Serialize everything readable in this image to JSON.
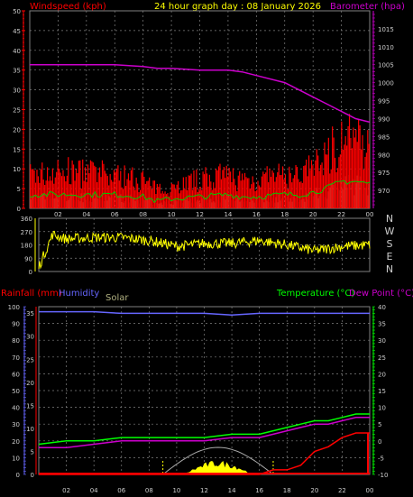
{
  "colors": {
    "wind": "#ff0000",
    "gust": "#00cc00",
    "gust_fill": "#ccffcc",
    "baro": "#cc00cc",
    "wdir": "#ffff00",
    "rain": "#ff0000",
    "humidity": "#6666ff",
    "solar": "#ffff00",
    "solar_text": "#b0b080",
    "temp": "#00ff00",
    "dew": "#cc00cc",
    "title": "#ffff00",
    "grid": "#808080",
    "tick": "#cccccc",
    "axis_blue": "#6666ff",
    "axis_green": "#00ff00"
  },
  "header": {
    "wind_label": "Windspeed (kph)",
    "title": "24 hour graph day : 08 January 2026",
    "baro_label": "Barometer (hpa)"
  },
  "lower_header": {
    "rain_label": "Rainfall (mm)",
    "hum_label": "Humidity",
    "solar_label": "Solar",
    "temp_label": "Temperature (°C)",
    "dew_label": "Dew Point (°C)"
  },
  "time_ticks": [
    "02",
    "04",
    "06",
    "08",
    "10",
    "12",
    "14",
    "16",
    "18",
    "20",
    "22",
    "00"
  ],
  "chart_data": [
    {
      "type": "line",
      "title": "24 hour graph day : 08 January 2026",
      "ylabel": "Windspeed (kph)",
      "y2label": "Barometer (hpa)",
      "ylim": [
        0,
        50
      ],
      "y2lim": [
        965,
        1020
      ],
      "yticks": [
        0,
        5,
        10,
        15,
        20,
        25,
        30,
        35,
        40,
        45,
        50
      ],
      "y2ticks": [
        970,
        975,
        980,
        985,
        990,
        995,
        1000,
        1005,
        1010,
        1015
      ],
      "x_hours": [
        0,
        2,
        4,
        6,
        8,
        9,
        10,
        12,
        14,
        15,
        16,
        18,
        19,
        20,
        21,
        22,
        23,
        24
      ],
      "series": [
        {
          "name": "Windspeed (kph)",
          "values": [
            5,
            5,
            5,
            5,
            4,
            2,
            3,
            4,
            5,
            4,
            4,
            5,
            5,
            6,
            8,
            11,
            11,
            10
          ]
        },
        {
          "name": "Barometer (hpa)",
          "values": [
            1005,
            1005,
            1005,
            1005,
            1004.5,
            1004,
            1004,
            1003.5,
            1003.5,
            1003,
            1002,
            1000,
            998,
            996,
            994,
            992,
            990,
            989
          ]
        }
      ],
      "gust_values": [
        9,
        10,
        10,
        9,
        8,
        5,
        6,
        8,
        9,
        8,
        8,
        9,
        9,
        11,
        15,
        20,
        18,
        17
      ],
      "grid": true
    },
    {
      "type": "scatter",
      "ylabel": "Wind direction",
      "ylim": [
        0,
        360
      ],
      "yticks": [
        0,
        90,
        180,
        270,
        360
      ],
      "compass_labels": [
        "N",
        "W",
        "S",
        "E",
        "N"
      ],
      "x_hours": [
        0,
        1,
        2,
        4,
        6,
        8,
        10,
        12,
        14,
        16,
        18,
        20,
        22,
        24
      ],
      "values": [
        30,
        250,
        220,
        230,
        230,
        210,
        170,
        190,
        190,
        210,
        180,
        140,
        170,
        180
      ],
      "grid": true
    },
    {
      "type": "line",
      "ylabel": "Rainfall (mm)",
      "ylim": [
        0,
        100
      ],
      "yticks": [
        0,
        10,
        20,
        30,
        40,
        50,
        60,
        70,
        80,
        90,
        100
      ],
      "rain_ticks": [
        0,
        5,
        10,
        15,
        20,
        25,
        30,
        35
      ],
      "temp_ticks": [
        -10,
        -5,
        0,
        5,
        10,
        15,
        20,
        25,
        30,
        35,
        40
      ],
      "x_hours": [
        0,
        2,
        4,
        6,
        8,
        10,
        12,
        14,
        16,
        17,
        18,
        19,
        20,
        21,
        22,
        23,
        24
      ],
      "series": [
        {
          "name": "Rainfall (mm)",
          "values": [
            0,
            0,
            0,
            0,
            0,
            0,
            0,
            0,
            0,
            1,
            1,
            2,
            5,
            6,
            8,
            9,
            9
          ]
        },
        {
          "name": "Humidity",
          "values": [
            97,
            97,
            97,
            96,
            96,
            96,
            96,
            95,
            96,
            96,
            96,
            96,
            96,
            96,
            96,
            96,
            96
          ]
        },
        {
          "name": "Temperature (°C)",
          "values": [
            -1,
            0,
            0,
            1,
            1,
            1,
            1,
            2,
            2,
            3,
            4,
            5,
            6,
            6,
            7,
            8,
            8
          ]
        },
        {
          "name": "Dew Point (°C)",
          "values": [
            -2,
            -2,
            -1,
            0,
            0,
            0,
            0,
            1,
            1,
            2,
            3,
            4,
            5,
            5,
            6,
            7,
            7
          ]
        },
        {
          "name": "Solar",
          "values": [
            0,
            0,
            0,
            0,
            0,
            0,
            0,
            0,
            0,
            0,
            0,
            0,
            0,
            0,
            0,
            0,
            0
          ]
        }
      ],
      "solar_max_hours": [
        9,
        17
      ],
      "grid": true
    }
  ]
}
